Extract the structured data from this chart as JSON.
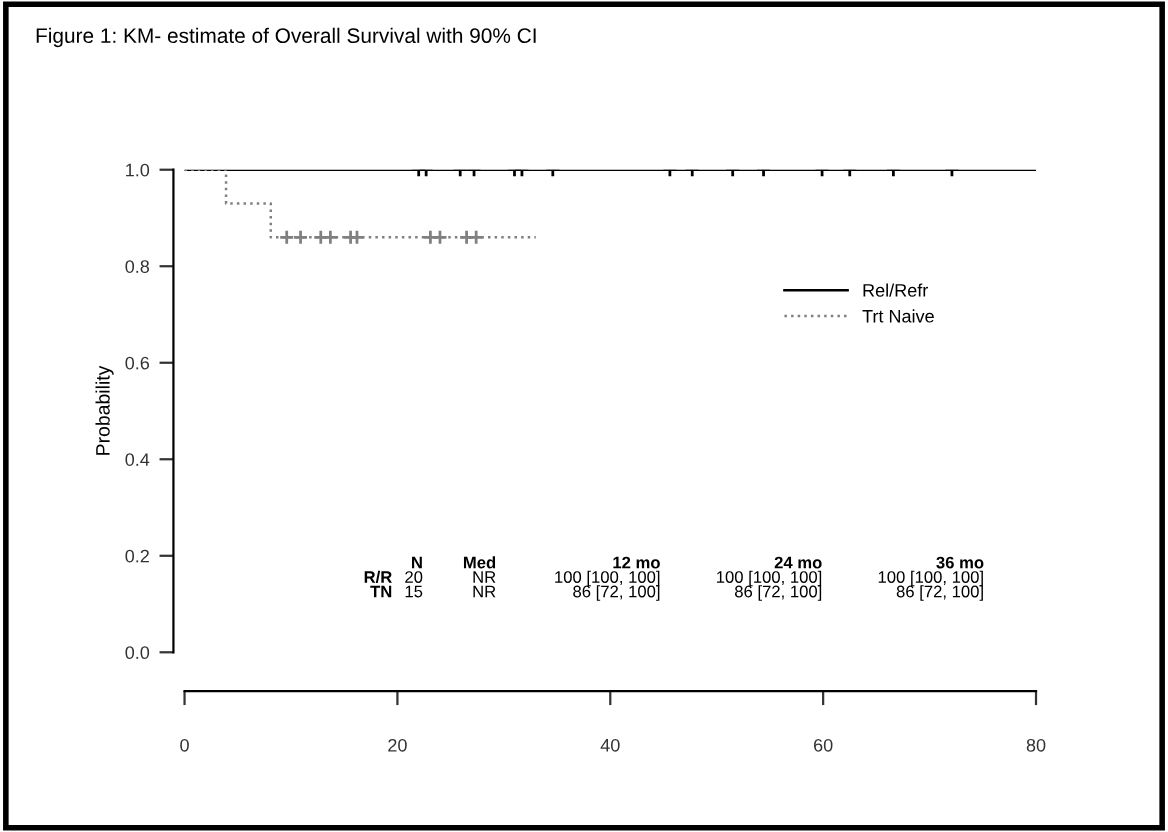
{
  "chart_data": {
    "type": "step",
    "title": "Figure 1: KM- estimate of Overall Survival with 90% CI",
    "ylabel": "Probability",
    "xlim": [
      0,
      80
    ],
    "xticks": [
      0,
      20,
      40,
      60,
      80
    ],
    "ylim": [
      0,
      1
    ],
    "yticks": [
      {
        "value": 0,
        "label": "0.0"
      },
      0.2,
      0.4,
      0.6,
      0.8,
      {
        "value": 1,
        "label": "1.0"
      }
    ],
    "grid": false,
    "legend": "right",
    "series": [
      {
        "name": "Rel/Refr",
        "color": "#000000",
        "line_style": "solid",
        "x": [
          0,
          80
        ],
        "values": [
          1.0,
          1.0
        ]
      },
      {
        "name": "Trt Naive",
        "color": "#808080",
        "line_style": "dotted",
        "x": [
          0,
          3.9,
          8.1,
          33
        ],
        "values": [
          1.0,
          0.93,
          0.86,
          0.86
        ]
      },
      {
        "type": "scatter",
        "marker": "cross",
        "color": "#000000",
        "x": [
          22,
          22.7,
          25.9,
          27.2,
          31,
          31.7,
          34.6,
          45.6,
          47.7,
          51.5,
          54.4,
          59.9,
          62.5,
          66.6,
          72.1
        ],
        "values": [
          1,
          1,
          1,
          1,
          1,
          1,
          1,
          1,
          1,
          1,
          1,
          1,
          1,
          1,
          1
        ]
      },
      {
        "type": "scatter",
        "marker": "cross",
        "color": "#808080",
        "x": [
          9.6,
          10.9,
          12.8,
          13.7,
          15.6,
          16.2,
          23.1,
          24,
          26.5,
          27.4
        ],
        "values": [
          0.86,
          0.86,
          0.86,
          0.86,
          0.86,
          0.86,
          0.86,
          0.86,
          0.86,
          0.86
        ]
      }
    ],
    "annotations": [
      "N",
      "Med",
      "12 mo",
      "24 mo",
      "36 mo",
      "R/R",
      "20",
      "NR",
      "100 [100, 100]",
      "100 [100, 100]",
      "100 [100, 100]",
      "TN",
      "15",
      "NR",
      "86 [72, 100]",
      "86 [72, 100]",
      "86 [72, 100]"
    ]
  }
}
